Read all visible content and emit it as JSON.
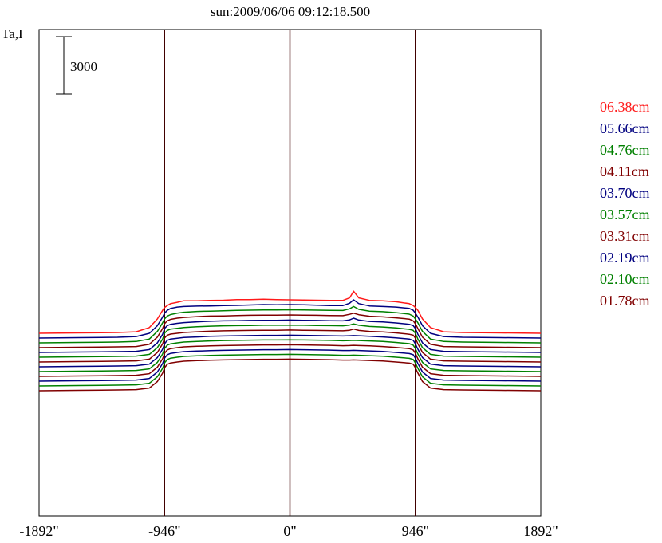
{
  "chart_data": {
    "type": "line",
    "title": "sun:2009/06/06 09:12:18.500",
    "ylabel": "Ta,I",
    "scale_bar_label": "3000",
    "xlim": [
      -1892,
      1892
    ],
    "x_ticks": [
      {
        "value": -1892,
        "label": "-1892\""
      },
      {
        "value": -946,
        "label": "-946\""
      },
      {
        "value": 0,
        "label": "0\""
      },
      {
        "value": 946,
        "label": "946\""
      },
      {
        "value": 1892,
        "label": "1892\""
      }
    ],
    "vertical_lines": [
      -946,
      0,
      946
    ],
    "legend_position": "right",
    "x": [
      -1892,
      -1600,
      -1300,
      -1160,
      -1060,
      -1000,
      -960,
      -946,
      -925,
      -900,
      -850,
      -800,
      -700,
      -600,
      -500,
      -400,
      -300,
      -200,
      -100,
      0,
      100,
      200,
      300,
      400,
      450,
      480,
      520,
      600,
      700,
      800,
      900,
      930,
      946,
      965,
      1000,
      1060,
      1160,
      1300,
      1600,
      1892
    ],
    "series": [
      {
        "name": "06.38cm",
        "color": "#ff1a1a",
        "offset": 1750,
        "values": [
          0,
          20,
          40,
          80,
          300,
          750,
          1200,
          1350,
          1450,
          1550,
          1620,
          1700,
          1700,
          1720,
          1730,
          1760,
          1760,
          1780,
          1760,
          1750,
          1740,
          1730,
          1720,
          1720,
          1850,
          2200,
          1850,
          1720,
          1700,
          1650,
          1550,
          1450,
          1350,
          1200,
          750,
          300,
          80,
          40,
          20,
          0
        ]
      },
      {
        "name": "05.66cm",
        "color": "#000080",
        "offset": 1500,
        "values": [
          0,
          20,
          40,
          80,
          250,
          650,
          1100,
          1300,
          1450,
          1550,
          1620,
          1650,
          1670,
          1680,
          1700,
          1710,
          1730,
          1750,
          1740,
          1750,
          1740,
          1720,
          1700,
          1700,
          1820,
          2000,
          1800,
          1680,
          1650,
          1620,
          1550,
          1450,
          1300,
          1100,
          650,
          250,
          80,
          40,
          20,
          0
        ]
      },
      {
        "name": "04.76cm",
        "color": "#008000",
        "offset": 1250,
        "values": [
          0,
          20,
          40,
          70,
          200,
          600,
          1050,
          1250,
          1400,
          1480,
          1550,
          1600,
          1640,
          1660,
          1680,
          1700,
          1710,
          1720,
          1720,
          1730,
          1720,
          1710,
          1700,
          1690,
          1780,
          1900,
          1750,
          1660,
          1630,
          1580,
          1500,
          1400,
          1250,
          1050,
          600,
          200,
          70,
          40,
          20,
          0
        ]
      },
      {
        "name": "04.11cm",
        "color": "#800000",
        "offset": 1000,
        "values": [
          0,
          20,
          40,
          60,
          180,
          550,
          1000,
          1250,
          1400,
          1480,
          1540,
          1580,
          1620,
          1650,
          1660,
          1680,
          1690,
          1700,
          1700,
          1710,
          1700,
          1690,
          1680,
          1670,
          1740,
          1800,
          1720,
          1640,
          1610,
          1560,
          1490,
          1400,
          1250,
          1000,
          550,
          180,
          60,
          40,
          20,
          0
        ]
      },
      {
        "name": "03.70cm",
        "color": "#000080",
        "offset": 750,
        "values": [
          0,
          20,
          40,
          60,
          150,
          500,
          950,
          1250,
          1400,
          1470,
          1520,
          1560,
          1600,
          1630,
          1650,
          1660,
          1670,
          1680,
          1680,
          1690,
          1680,
          1670,
          1660,
          1650,
          1700,
          1790,
          1690,
          1620,
          1590,
          1540,
          1470,
          1400,
          1250,
          950,
          500,
          150,
          60,
          40,
          20,
          0
        ]
      },
      {
        "name": "03.57cm",
        "color": "#008000",
        "offset": 500,
        "values": [
          0,
          20,
          40,
          60,
          150,
          500,
          950,
          1250,
          1400,
          1470,
          1510,
          1550,
          1590,
          1620,
          1640,
          1650,
          1660,
          1670,
          1670,
          1680,
          1670,
          1660,
          1650,
          1640,
          1680,
          1740,
          1670,
          1610,
          1580,
          1530,
          1460,
          1400,
          1250,
          950,
          500,
          150,
          60,
          40,
          20,
          0
        ]
      },
      {
        "name": "03.31cm",
        "color": "#800000",
        "offset": 250,
        "values": [
          0,
          20,
          40,
          60,
          150,
          500,
          950,
          1250,
          1400,
          1460,
          1500,
          1540,
          1580,
          1610,
          1630,
          1640,
          1650,
          1660,
          1660,
          1670,
          1660,
          1650,
          1640,
          1630,
          1660,
          1720,
          1650,
          1600,
          1570,
          1520,
          1450,
          1400,
          1250,
          950,
          500,
          150,
          60,
          40,
          20,
          0
        ]
      },
      {
        "name": "02.19cm",
        "color": "#000080",
        "offset": 0,
        "values": [
          0,
          20,
          40,
          60,
          140,
          480,
          920,
          1200,
          1380,
          1450,
          1490,
          1530,
          1560,
          1590,
          1610,
          1620,
          1630,
          1640,
          1640,
          1650,
          1640,
          1630,
          1620,
          1610,
          1620,
          1630,
          1620,
          1590,
          1560,
          1510,
          1450,
          1380,
          1200,
          920,
          480,
          140,
          60,
          40,
          20,
          0
        ]
      },
      {
        "name": "02.10cm",
        "color": "#008000",
        "offset": -250,
        "values": [
          0,
          20,
          40,
          60,
          140,
          480,
          920,
          1200,
          1380,
          1450,
          1500,
          1540,
          1570,
          1600,
          1620,
          1630,
          1640,
          1650,
          1650,
          1660,
          1650,
          1640,
          1630,
          1610,
          1620,
          1630,
          1620,
          1600,
          1570,
          1520,
          1460,
          1380,
          1200,
          920,
          480,
          140,
          60,
          40,
          20,
          0
        ]
      },
      {
        "name": "01.78cm",
        "color": "#800000",
        "offset": -500,
        "values": [
          0,
          20,
          40,
          60,
          140,
          480,
          920,
          1200,
          1380,
          1450,
          1500,
          1540,
          1570,
          1590,
          1610,
          1620,
          1630,
          1640,
          1640,
          1650,
          1640,
          1630,
          1620,
          1600,
          1610,
          1620,
          1610,
          1590,
          1560,
          1510,
          1450,
          1380,
          1200,
          920,
          480,
          140,
          60,
          40,
          20,
          0
        ]
      },
      {
        "name": "",
        "color": "#000080",
        "offset": -750,
        "values": [
          0,
          20,
          40,
          60,
          140,
          480,
          920,
          1200,
          1380,
          1450,
          1500,
          1540,
          1570,
          1590,
          1610,
          1620,
          1630,
          1640,
          1640,
          1650,
          1640,
          1630,
          1620,
          1600,
          1600,
          1610,
          1600,
          1580,
          1550,
          1500,
          1440,
          1380,
          1200,
          920,
          480,
          140,
          60,
          40,
          20,
          0
        ]
      },
      {
        "name": "",
        "color": "#008000",
        "offset": -1000,
        "values": [
          0,
          20,
          40,
          60,
          140,
          480,
          920,
          1200,
          1380,
          1450,
          1500,
          1540,
          1570,
          1590,
          1610,
          1620,
          1630,
          1640,
          1640,
          1650,
          1640,
          1630,
          1620,
          1600,
          1600,
          1610,
          1600,
          1580,
          1550,
          1500,
          1440,
          1380,
          1200,
          920,
          480,
          140,
          60,
          40,
          20,
          0
        ]
      },
      {
        "name": "",
        "color": "#800000",
        "offset": -1250,
        "values": [
          0,
          20,
          40,
          60,
          140,
          480,
          920,
          1200,
          1380,
          1450,
          1500,
          1540,
          1570,
          1590,
          1610,
          1620,
          1630,
          1640,
          1640,
          1650,
          1640,
          1630,
          1620,
          1600,
          1600,
          1610,
          1600,
          1580,
          1550,
          1500,
          1440,
          1380,
          1200,
          920,
          480,
          140,
          60,
          40,
          20,
          0
        ]
      }
    ]
  }
}
